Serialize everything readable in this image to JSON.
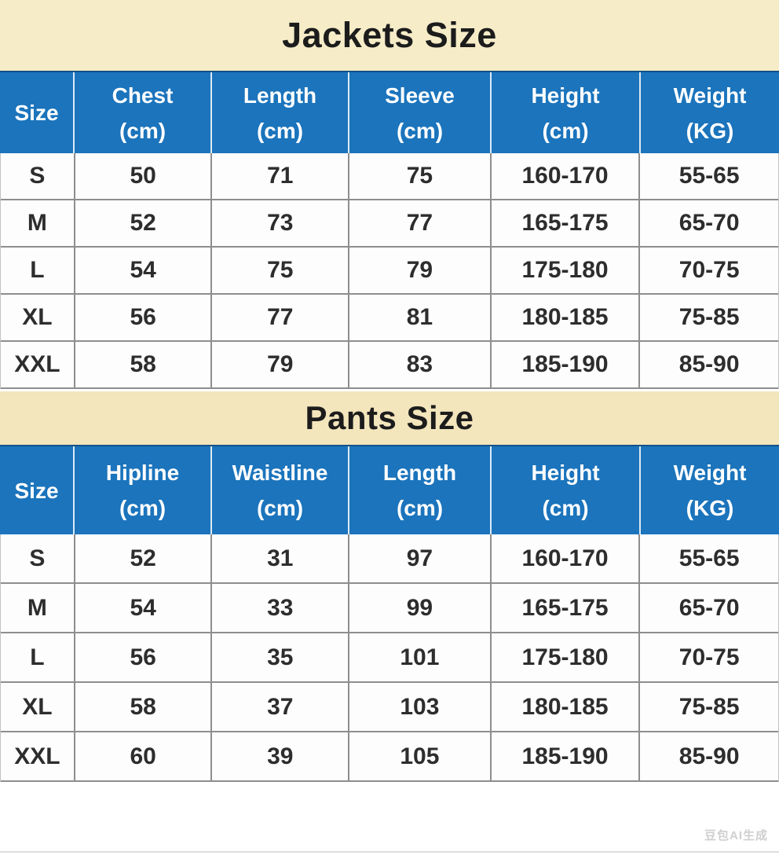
{
  "watermark": "豆包AI生成",
  "colors": {
    "header_blue": "#1b74bc",
    "header_border_navy": "#14518a",
    "band_cream_top": "#f6ecc8",
    "band_cream_pants": "#f3e5bc",
    "grid_gray": "#8e8e8e"
  },
  "chart_data": [
    {
      "type": "table",
      "title": "Jackets Size",
      "columns": [
        "Size",
        "Chest (cm)",
        "Length (cm)",
        "Sleeve (cm)",
        "Height (cm)",
        "Weight (KG)"
      ],
      "col_top": [
        "Size",
        "Chest",
        "Length",
        "Sleeve",
        "Height",
        "Weight"
      ],
      "col_bottom": [
        "",
        "(cm)",
        "(cm)",
        "(cm)",
        "(cm)",
        "(KG)"
      ],
      "rows": [
        [
          "S",
          "50",
          "71",
          "75",
          "160-170",
          "55-65"
        ],
        [
          "M",
          "52",
          "73",
          "77",
          "165-175",
          "65-70"
        ],
        [
          "L",
          "54",
          "75",
          "79",
          "175-180",
          "70-75"
        ],
        [
          "XL",
          "56",
          "77",
          "81",
          "180-185",
          "75-85"
        ],
        [
          "XXL",
          "58",
          "79",
          "83",
          "185-190",
          "85-90"
        ]
      ]
    },
    {
      "type": "table",
      "title": "Pants Size",
      "columns": [
        "Size",
        "Hipline (cm)",
        "Waistline (cm)",
        "Length (cm)",
        "Height (cm)",
        "Weight (KG)"
      ],
      "col_top": [
        "Size",
        "Hipline",
        "Waistline",
        "Length",
        "Height",
        "Weight"
      ],
      "col_bottom": [
        "",
        "(cm)",
        "(cm)",
        "(cm)",
        "(cm)",
        "(KG)"
      ],
      "rows": [
        [
          "S",
          "52",
          "31",
          "97",
          "160-170",
          "55-65"
        ],
        [
          "M",
          "54",
          "33",
          "99",
          "165-175",
          "65-70"
        ],
        [
          "L",
          "56",
          "35",
          "101",
          "175-180",
          "70-75"
        ],
        [
          "XL",
          "58",
          "37",
          "103",
          "180-185",
          "75-85"
        ],
        [
          "XXL",
          "60",
          "39",
          "105",
          "185-190",
          "85-90"
        ]
      ]
    }
  ]
}
